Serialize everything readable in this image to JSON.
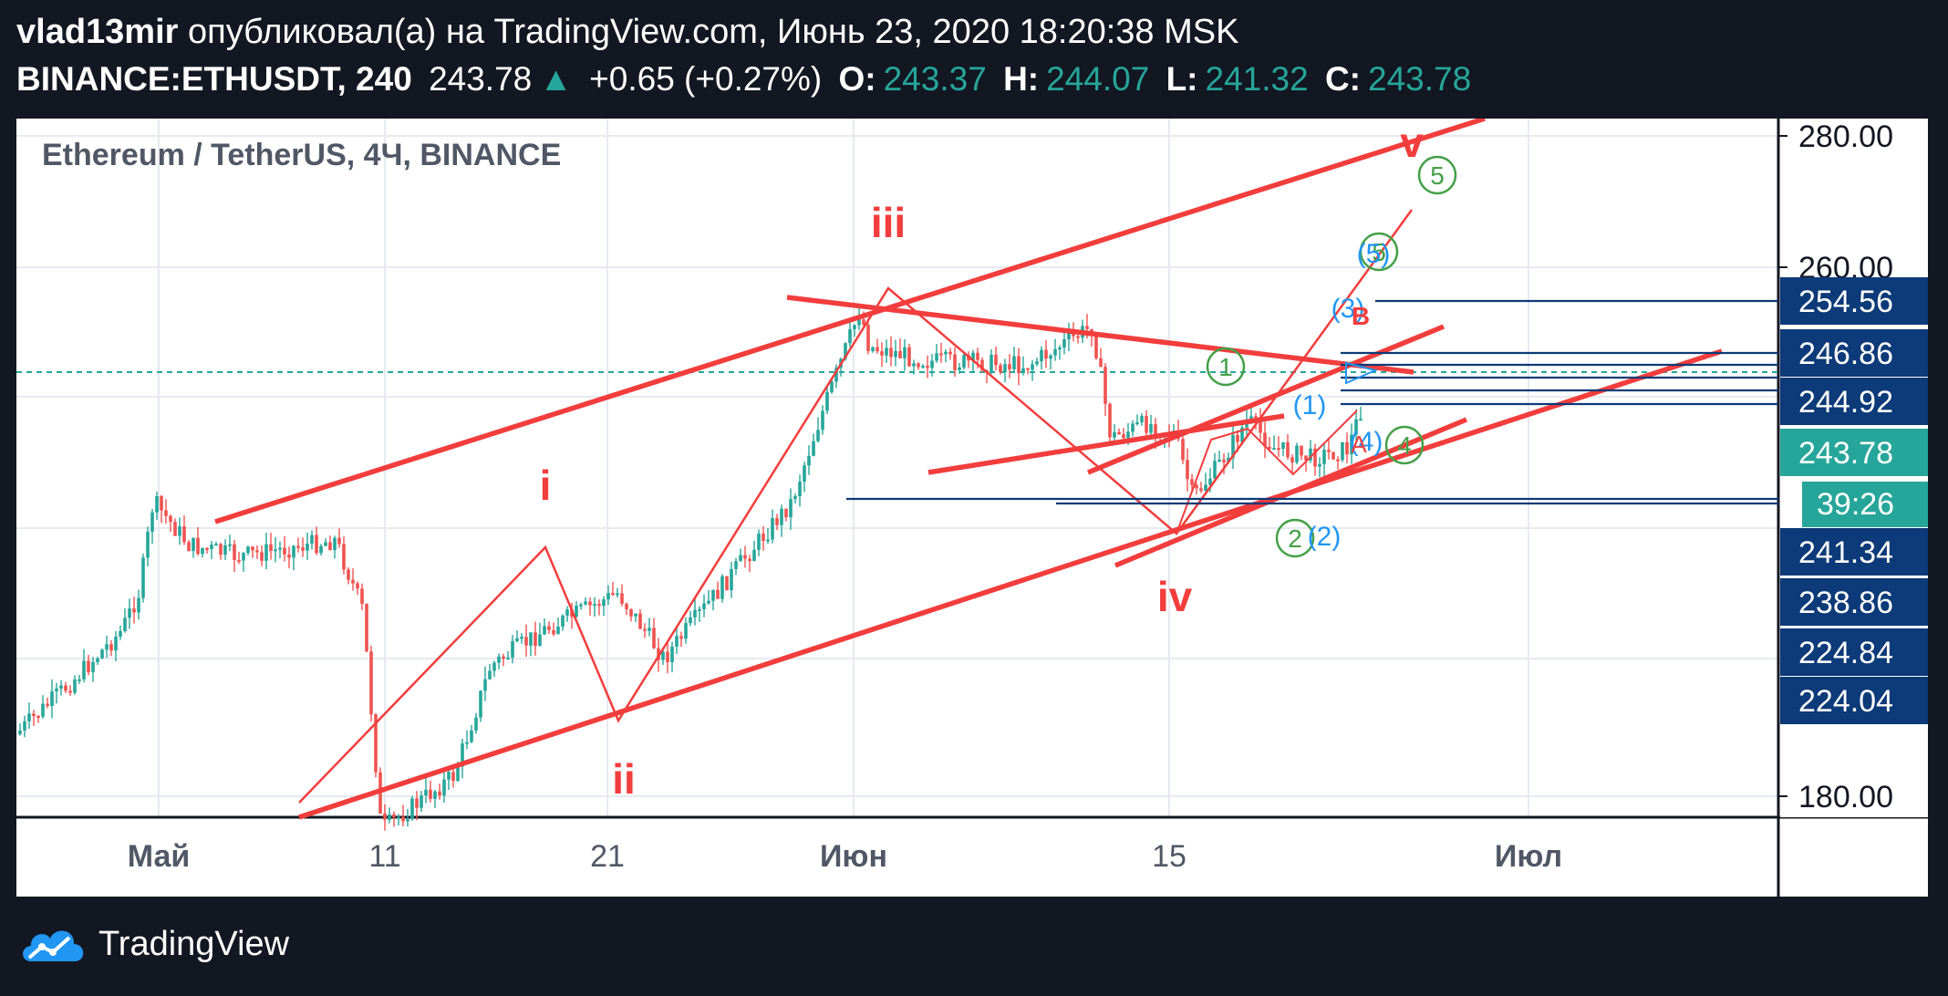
{
  "header": {
    "author": "vlad13mir",
    "published_text": "опубликовал(а) на TradingView.com, Июнь 23, 2020 18:20:38 MSK",
    "symbol": "BINANCE:ETHUSDT, 240",
    "last_price": "243.78",
    "change": "+0.65 (+0.27%)",
    "open_label": "O:",
    "open": "243.37",
    "high_label": "H:",
    "high": "244.07",
    "low_label": "L:",
    "low": "241.32",
    "close_label": "C:",
    "close": "243.78"
  },
  "brand": {
    "name": "TradingView",
    "icon": "cloud-chart-icon"
  },
  "colors": {
    "background": "#131722",
    "up": "#26a69a",
    "down": "#ef5350",
    "annotation_red": "#f23d3d",
    "wave_green": "#43a047",
    "wave_blue": "#2196f3",
    "level_navy": "#0d3a78"
  },
  "chart_data": {
    "type": "candlestick",
    "title": "Ethereum / TetherUS, 4Ч, BINANCE",
    "y_axis_ticks": [
      "280.00",
      "260.00",
      "180.00"
    ],
    "y_axis_scale": "nonlinear (logarithmic-style manual scale)",
    "x_axis_ticks": [
      "Май",
      "11",
      "21",
      "Июн",
      "15",
      "Июл"
    ],
    "price_labels": [
      "254.56",
      "246.86",
      "244.92",
      "241.34",
      "238.86",
      "224.84",
      "224.04"
    ],
    "current_price_label": "243.78",
    "countdown_label": "39:26",
    "current_price_line": 243.78,
    "horizontal_levels": [
      254.56,
      246.86,
      244.92,
      241.34,
      238.86,
      224.84,
      224.04
    ],
    "elliott_wave_labels_primary": [
      "i",
      "ii",
      "iii",
      "iv",
      "v"
    ],
    "elliott_wave_labels_green": [
      "1",
      "2",
      "4",
      "5",
      "5"
    ],
    "elliott_wave_labels_blue": [
      "(1)",
      "(2)",
      "(3)",
      "(4)",
      "(5)"
    ],
    "corrective_labels": [
      "A",
      "B"
    ],
    "grid": true,
    "legend": "none"
  }
}
